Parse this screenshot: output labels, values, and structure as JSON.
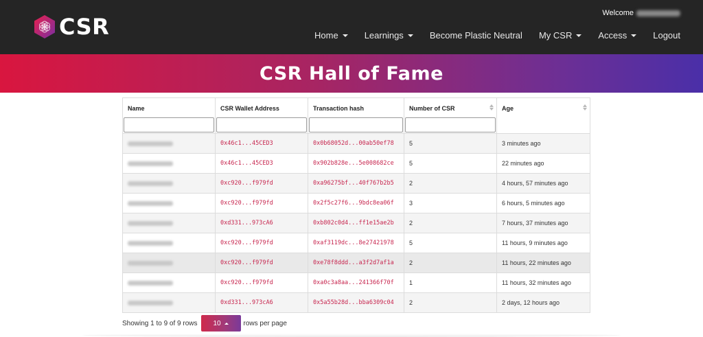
{
  "brand": {
    "name": "CSR"
  },
  "header": {
    "welcome": "Welcome",
    "nav": [
      {
        "label": "Home",
        "has_caret": true
      },
      {
        "label": "Learnings",
        "has_caret": true
      },
      {
        "label": "Become Plastic Neutral",
        "has_caret": false
      },
      {
        "label": "My CSR",
        "has_caret": true
      },
      {
        "label": "Access",
        "has_caret": true
      },
      {
        "label": "Logout",
        "has_caret": false
      }
    ]
  },
  "banner": {
    "title": "CSR Hall of Fame"
  },
  "table": {
    "columns": [
      {
        "label": "Name",
        "filter": true,
        "sortable": false
      },
      {
        "label": "CSR Wallet Address",
        "filter": true,
        "sortable": false
      },
      {
        "label": "Transaction hash",
        "filter": true,
        "sortable": false
      },
      {
        "label": "Number of CSR",
        "filter": true,
        "sortable": true
      },
      {
        "label": "Age",
        "filter": false,
        "sortable": true
      }
    ],
    "rows": [
      {
        "wallet": "0x46c1...45CED3",
        "tx": "0x0b68052d...00ab50ef78",
        "count": "5",
        "age": "3 minutes ago"
      },
      {
        "wallet": "0x46c1...45CED3",
        "tx": "0x902b828e...5e008682ce",
        "count": "5",
        "age": "22 minutes ago"
      },
      {
        "wallet": "0xc920...f979fd",
        "tx": "0xa96275bf...40f767b2b5",
        "count": "2",
        "age": "4 hours, 57 minutes ago"
      },
      {
        "wallet": "0xc920...f979fd",
        "tx": "0x2f5c27f6...9bdc8ea06f",
        "count": "3",
        "age": "6 hours, 5 minutes ago"
      },
      {
        "wallet": "0xd331...973cA6",
        "tx": "0xb802c0d4...ff1e15ae2b",
        "count": "2",
        "age": "7 hours, 37 minutes ago"
      },
      {
        "wallet": "0xc920...f979fd",
        "tx": "0xaf3119dc...8e27421978",
        "count": "5",
        "age": "11 hours, 9 minutes ago"
      },
      {
        "wallet": "0xc920...f979fd",
        "tx": "0xe78f8ddd...a3f2d7af1a",
        "count": "2",
        "age": "11 hours, 22 minutes ago"
      },
      {
        "wallet": "0xc920...f979fd",
        "tx": "0xa0c3a8aa...241366f70f",
        "count": "1",
        "age": "11 hours, 32 minutes ago"
      },
      {
        "wallet": "0xd331...973cA6",
        "tx": "0x5a55b28d...bba6309c04",
        "count": "2",
        "age": "2 days, 12 hours ago"
      }
    ]
  },
  "pagination": {
    "showing": "Showing 1 to 9 of 9 rows",
    "rows_per_page_value": "10",
    "rows_per_page_suffix": "rows per page"
  },
  "colors": {
    "accent_start": "#d9163f",
    "accent_end": "#4a2fa8",
    "hash_text": "#c7254e"
  }
}
